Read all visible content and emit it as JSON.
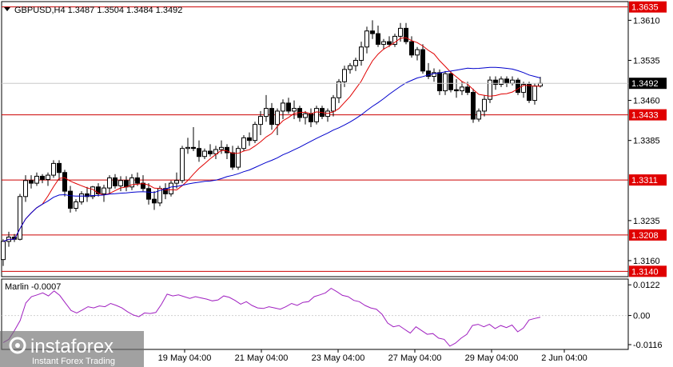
{
  "header": {
    "symbol_line": "GBPUSD,H4  1.3487 1.3504 1.3484 1.3492",
    "indicator_label": "Marlin -0.0007"
  },
  "colors": {
    "candle_up": "#ffffff",
    "candle_down": "#000000",
    "fast_ma": "#e00000",
    "slow_ma": "#0000cc",
    "level": "#cc0000",
    "level_label_bg": "#e00000",
    "marlin": "#a020c0",
    "grid_border": "#000000",
    "current_price_bg": "#000000"
  },
  "watermark": {
    "brand": "instaforex",
    "tagline": "Instant Forex Trading"
  },
  "chart_data": [
    {
      "type": "candlestick",
      "symbol": "GBPUSD",
      "timeframe": "H4",
      "last_bar": {
        "open": 1.3487,
        "high": 1.3504,
        "low": 1.3484,
        "close": 1.3492
      },
      "current_price_label": "1.3492",
      "y_ticks": [
        "1.3610",
        "1.3535",
        "1.3460",
        "1.3385",
        "1.3235",
        "1.3160"
      ],
      "ylim": [
        1.313,
        1.3645
      ],
      "x_tick_labels": [
        "19 May 04:00",
        "21 May 04:00",
        "23 May 04:00",
        "27 May 04:00",
        "29 May 04:00",
        "2 Jun 04:00"
      ],
      "horizontal_levels": [
        {
          "value": 1.3635,
          "label": "1.3635"
        },
        {
          "value": 1.3433,
          "label": "1.3433"
        },
        {
          "value": 1.3311,
          "label": "1.3311"
        },
        {
          "value": 1.3208,
          "label": "1.3208"
        },
        {
          "value": 1.314,
          "label": "1.3140"
        }
      ],
      "candles": [
        [
          1.3162,
          1.32,
          1.315,
          1.3196
        ],
        [
          1.3196,
          1.3214,
          1.3186,
          1.3204
        ],
        [
          1.3204,
          1.321,
          1.3195,
          1.32
        ],
        [
          1.32,
          1.3285,
          1.3198,
          1.328
        ],
        [
          1.328,
          1.332,
          1.327,
          1.331
        ],
        [
          1.331,
          1.332,
          1.3295,
          1.3305
        ],
        [
          1.3305,
          1.3325,
          1.33,
          1.3318
        ],
        [
          1.3318,
          1.3322,
          1.3305,
          1.3312
        ],
        [
          1.3312,
          1.3325,
          1.33,
          1.332
        ],
        [
          1.332,
          1.3348,
          1.3315,
          1.3342
        ],
        [
          1.3342,
          1.3348,
          1.331,
          1.3325
        ],
        [
          1.3325,
          1.333,
          1.328,
          1.329
        ],
        [
          1.329,
          1.33,
          1.325,
          1.3258
        ],
        [
          1.3258,
          1.3275,
          1.3252,
          1.327
        ],
        [
          1.327,
          1.329,
          1.3265,
          1.3285
        ],
        [
          1.3285,
          1.3298,
          1.327,
          1.328
        ],
        [
          1.328,
          1.33,
          1.3275,
          1.3298
        ],
        [
          1.3298,
          1.3305,
          1.328,
          1.3285
        ],
        [
          1.3285,
          1.3302,
          1.327,
          1.3296
        ],
        [
          1.3296,
          1.332,
          1.3285,
          1.3315
        ],
        [
          1.3315,
          1.3322,
          1.3295,
          1.33
        ],
        [
          1.33,
          1.3318,
          1.329,
          1.331
        ],
        [
          1.331,
          1.3318,
          1.329,
          1.3298
        ],
        [
          1.3298,
          1.3322,
          1.3292,
          1.3315
        ],
        [
          1.3315,
          1.3325,
          1.33,
          1.3305
        ],
        [
          1.3305,
          1.332,
          1.329,
          1.3295
        ],
        [
          1.3295,
          1.3305,
          1.3265,
          1.3275
        ],
        [
          1.3275,
          1.329,
          1.3255,
          1.3268
        ],
        [
          1.3268,
          1.33,
          1.3262,
          1.3295
        ],
        [
          1.3295,
          1.3305,
          1.3275,
          1.3285
        ],
        [
          1.3285,
          1.331,
          1.328,
          1.3305
        ],
        [
          1.3305,
          1.3325,
          1.3295,
          1.331
        ],
        [
          1.331,
          1.3375,
          1.3305,
          1.337
        ],
        [
          1.337,
          1.339,
          1.336,
          1.3372
        ],
        [
          1.3372,
          1.341,
          1.3365,
          1.337
        ],
        [
          1.337,
          1.3385,
          1.3345,
          1.3355
        ],
        [
          1.3355,
          1.337,
          1.335,
          1.3365
        ],
        [
          1.3365,
          1.3378,
          1.3355,
          1.336
        ],
        [
          1.336,
          1.3375,
          1.335,
          1.3368
        ],
        [
          1.3368,
          1.3385,
          1.336,
          1.3372
        ],
        [
          1.3372,
          1.3378,
          1.335,
          1.3362
        ],
        [
          1.3362,
          1.3375,
          1.333,
          1.3335
        ],
        [
          1.3335,
          1.3375,
          1.333,
          1.337
        ],
        [
          1.337,
          1.3395,
          1.3365,
          1.339
        ],
        [
          1.339,
          1.34,
          1.3375,
          1.3385
        ],
        [
          1.3385,
          1.342,
          1.338,
          1.3415
        ],
        [
          1.3415,
          1.344,
          1.3395,
          1.343
        ],
        [
          1.343,
          1.347,
          1.342,
          1.3445
        ],
        [
          1.3445,
          1.3455,
          1.3405,
          1.3415
        ],
        [
          1.3415,
          1.3445,
          1.3395,
          1.344
        ],
        [
          1.344,
          1.3462,
          1.3425,
          1.3455
        ],
        [
          1.3455,
          1.3465,
          1.3435,
          1.344
        ],
        [
          1.344,
          1.346,
          1.3425,
          1.3445
        ],
        [
          1.3445,
          1.345,
          1.342,
          1.3428
        ],
        [
          1.3428,
          1.344,
          1.3415,
          1.3435
        ],
        [
          1.3435,
          1.3445,
          1.341,
          1.342
        ],
        [
          1.342,
          1.345,
          1.3415,
          1.3445
        ],
        [
          1.3445,
          1.345,
          1.3425,
          1.343
        ],
        [
          1.343,
          1.3445,
          1.342,
          1.344
        ],
        [
          1.344,
          1.347,
          1.343,
          1.3465
        ],
        [
          1.3465,
          1.35,
          1.3455,
          1.3495
        ],
        [
          1.3495,
          1.3525,
          1.3485,
          1.3518
        ],
        [
          1.3518,
          1.353,
          1.351,
          1.3525
        ],
        [
          1.3525,
          1.354,
          1.3515,
          1.3535
        ],
        [
          1.3535,
          1.357,
          1.3525,
          1.356
        ],
        [
          1.356,
          1.3598,
          1.3548,
          1.359
        ],
        [
          1.359,
          1.361,
          1.3575,
          1.3585
        ],
        [
          1.3585,
          1.36,
          1.356,
          1.3565
        ],
        [
          1.3565,
          1.3575,
          1.3555,
          1.357
        ],
        [
          1.357,
          1.358,
          1.356,
          1.3565
        ],
        [
          1.3565,
          1.3585,
          1.356,
          1.358
        ],
        [
          1.358,
          1.3605,
          1.357,
          1.3595
        ],
        [
          1.3595,
          1.3605,
          1.3565,
          1.357
        ],
        [
          1.357,
          1.358,
          1.354,
          1.3545
        ],
        [
          1.3545,
          1.356,
          1.3535,
          1.3555
        ],
        [
          1.3555,
          1.3565,
          1.351,
          1.3515
        ],
        [
          1.3515,
          1.353,
          1.35,
          1.3505
        ],
        [
          1.3505,
          1.352,
          1.3495,
          1.3512
        ],
        [
          1.3512,
          1.3518,
          1.347,
          1.3478
        ],
        [
          1.3478,
          1.3515,
          1.347,
          1.351
        ],
        [
          1.351,
          1.3515,
          1.3475,
          1.348
        ],
        [
          1.348,
          1.35,
          1.3465,
          1.3478
        ],
        [
          1.3478,
          1.3495,
          1.347,
          1.3485
        ],
        [
          1.3485,
          1.3495,
          1.347,
          1.3475
        ],
        [
          1.3475,
          1.3482,
          1.3418,
          1.3425
        ],
        [
          1.3425,
          1.3445,
          1.342,
          1.344
        ],
        [
          1.344,
          1.347,
          1.343,
          1.3462
        ],
        [
          1.3462,
          1.3505,
          1.3455,
          1.3498
        ],
        [
          1.3498,
          1.3505,
          1.348,
          1.349
        ],
        [
          1.349,
          1.3505,
          1.3485,
          1.35
        ],
        [
          1.35,
          1.3505,
          1.3485,
          1.3492
        ],
        [
          1.3492,
          1.3505,
          1.3488,
          1.3498
        ],
        [
          1.3498,
          1.3502,
          1.347,
          1.3475
        ],
        [
          1.3475,
          1.3495,
          1.3465,
          1.349
        ],
        [
          1.349,
          1.3495,
          1.3455,
          1.346
        ],
        [
          1.346,
          1.3492,
          1.3452,
          1.3487
        ],
        [
          1.3487,
          1.3504,
          1.3484,
          1.3492
        ]
      ]
    },
    {
      "type": "line",
      "name": "Marlin",
      "last_value": -0.0007,
      "y_ticks": [
        "0.0122",
        "0.00",
        "-0.0116"
      ],
      "ylim": [
        -0.0135,
        0.0145
      ],
      "values": [
        -0.0108,
        -0.0095,
        -0.006,
        -0.002,
        0.005,
        0.0075,
        0.0082,
        0.009,
        0.0078,
        0.0098,
        0.008,
        0.005,
        0.002,
        0.001,
        0.0022,
        0.0035,
        0.003,
        0.0038,
        0.0035,
        0.0048,
        0.004,
        0.003,
        0.0015,
        0.0002,
        -0.0005,
        0.001,
        0.0008,
        0.0012,
        0.0045,
        0.0085,
        0.0078,
        0.0082,
        0.0075,
        0.0068,
        0.0075,
        0.007,
        0.0065,
        0.0058,
        0.0062,
        0.0078,
        0.0072,
        0.006,
        0.0045,
        0.0055,
        0.004,
        0.003,
        0.0028,
        0.0035,
        0.003,
        0.0025,
        0.0035,
        0.0048,
        0.004,
        0.0052,
        0.0055,
        0.0075,
        0.0082,
        0.009,
        0.0108,
        0.0095,
        0.008,
        0.0075,
        0.006,
        0.0055,
        0.004,
        0.003,
        0.0025,
        0.0005,
        -0.003,
        -0.0045,
        -0.004,
        -0.0055,
        -0.007,
        -0.0045,
        -0.006,
        -0.0075,
        -0.0072,
        -0.009,
        -0.0095,
        -0.0122,
        -0.011,
        -0.009,
        -0.0075,
        -0.004,
        -0.0035,
        -0.0045,
        -0.0035,
        -0.0052,
        -0.004,
        -0.0048,
        -0.0038,
        -0.0065,
        -0.005,
        -0.0018,
        -0.0012,
        -0.0007
      ]
    }
  ]
}
